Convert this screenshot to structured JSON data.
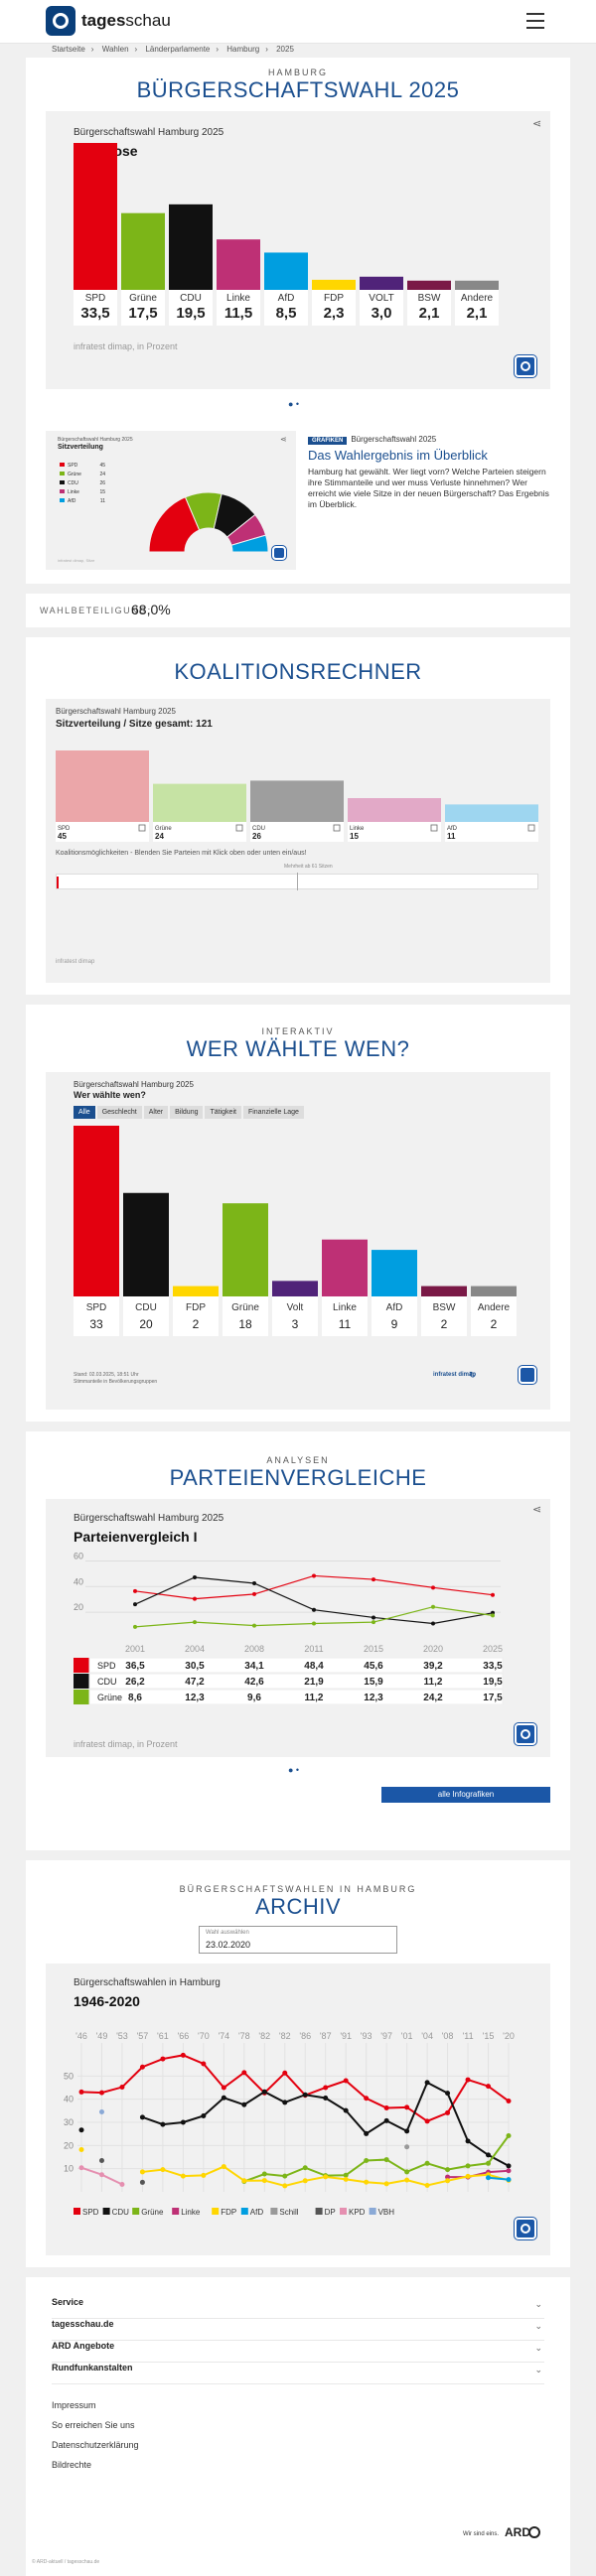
{
  "header": {
    "brand_bold": "tages",
    "brand_rest": "schau"
  },
  "breadcrumb": [
    "Startseite",
    "Wahlen",
    "Länderparlamente",
    "Hamburg",
    "2025"
  ],
  "hero": {
    "kicker": "HAMBURG",
    "title": "BÜRGERSCHAFTSWAHL 2025"
  },
  "prognose": {
    "subtitle": "Bürgerschaftswahl Hamburg 2025",
    "title": "Prognose",
    "source": "infratest dimap, in Prozent",
    "chart_data": {
      "type": "bar",
      "categories": [
        "SPD",
        "Grüne",
        "CDU",
        "Linke",
        "AfD",
        "FDP",
        "VOLT",
        "BSW",
        "Andere"
      ],
      "value_labels": [
        "33,5",
        "17,5",
        "19,5",
        "11,5",
        "8,5",
        "2,3",
        "3,0",
        "2,1",
        "2,1"
      ],
      "values": [
        33.5,
        17.5,
        19.5,
        11.5,
        8.5,
        2.3,
        3.0,
        2.1,
        2.1
      ],
      "colors": [
        "#e3000f",
        "#7cb518",
        "#111111",
        "#be3075",
        "#009ee0",
        "#ffd600",
        "#502379",
        "#7a1946",
        "#888888"
      ]
    }
  },
  "teaser": {
    "thumb_sub": "Bürgerschaftswahl Hamburg 2025",
    "thumb_title": "Sitzverteilung",
    "thumb_legend": [
      {
        "p": "SPD",
        "n": "45"
      },
      {
        "p": "Grüne",
        "n": "24"
      },
      {
        "p": "CDU",
        "n": "26"
      },
      {
        "p": "Linke",
        "n": "15"
      },
      {
        "p": "AfD",
        "n": "11"
      }
    ],
    "thumb_src": "infratest dimap, Sitze",
    "badge": "GRAFIKEN",
    "kicker": "Bürgerschaftswahl 2025",
    "headline": "Das Wahlergebnis im Überblick",
    "text": "Hamburg hat gewählt. Wer liegt vorn? Welche Parteien steigern ihre Stimmanteile und wer muss Verluste hinnehmen? Wer erreicht wie viele Sitze in der neuen Bürgerschaft? Das Ergebnis im Überblick."
  },
  "turnout": {
    "label": "WAHLBETEILIGUNG:",
    "value": "68,0%"
  },
  "coalition": {
    "title": "KOALITIONSRECHNER",
    "subtitle": "Bürgerschaftswahl Hamburg 2025",
    "heading": "Sitzverteilung / Sitze gesamt: 121",
    "hint": "Koalitionsmöglichkeiten - Blenden Sie Parteien mit Klick oben oder unten ein/aus!",
    "majority": "Mehrheit ab 61 Sitzen",
    "source": "infratest dimap",
    "chart_data": {
      "type": "bar",
      "categories": [
        "SPD",
        "Grüne",
        "CDU",
        "Linke",
        "AfD"
      ],
      "values": [
        45,
        24,
        26,
        15,
        11
      ],
      "colors": [
        "#eba6a9",
        "#c6e3a4",
        "#9e9e9e",
        "#e2a9c7",
        "#9ed6f0"
      ]
    }
  },
  "whovoted": {
    "kicker": "INTERAKTIV",
    "title": "WER WÄHLTE WEN?",
    "subtitle": "Bürgerschaftswahl Hamburg 2025",
    "heading": "Wer wählte wen?",
    "tabs": [
      "Alle",
      "Geschlecht",
      "Alter",
      "Bildung",
      "Tätigkeit",
      "Finanzielle Lage"
    ],
    "note1": "Stand: 02.03.2025, 18:51 Uhr",
    "note2": "Stimmanteile in Bevölkerungsgruppen",
    "src": "infratest dimap",
    "chart_data": {
      "type": "bar",
      "categories": [
        "SPD",
        "CDU",
        "FDP",
        "Grüne",
        "Volt",
        "Linke",
        "AfD",
        "BSW",
        "Andere"
      ],
      "values": [
        33,
        20,
        2,
        18,
        3,
        11,
        9,
        2,
        2
      ],
      "colors": [
        "#e3000f",
        "#111111",
        "#ffd600",
        "#7cb518",
        "#502379",
        "#be3075",
        "#009ee0",
        "#7a1946",
        "#888888"
      ]
    }
  },
  "compare": {
    "kicker": "ANALYSEN",
    "title": "PARTEIENVERGLEICHE",
    "subtitle": "Bürgerschaftswahl Hamburg 2025",
    "heading": "Parteienvergleich I",
    "source": "infratest dimap, in Prozent",
    "more_button": "alle Infografiken",
    "chart_data": {
      "type": "line",
      "x": [
        "2001",
        "2004",
        "2008",
        "2011",
        "2015",
        "2020",
        "2025"
      ],
      "yticks": [
        "20",
        "40",
        "60"
      ],
      "ylim": [
        0,
        65
      ],
      "series": [
        {
          "name": "SPD",
          "color": "#e3000f",
          "values": [
            36.5,
            30.5,
            34.1,
            48.4,
            45.6,
            39.2,
            33.5
          ],
          "labels": [
            "36,5",
            "30,5",
            "34,1",
            "48,4",
            "45,6",
            "39,2",
            "33,5"
          ]
        },
        {
          "name": "CDU",
          "color": "#111111",
          "values": [
            26.2,
            47.2,
            42.6,
            21.9,
            15.9,
            11.2,
            19.5
          ],
          "labels": [
            "26,2",
            "47,2",
            "42,6",
            "21,9",
            "15,9",
            "11,2",
            "19,5"
          ]
        },
        {
          "name": "Grüne",
          "color": "#7cb518",
          "values": [
            8.6,
            12.3,
            9.6,
            11.2,
            12.3,
            24.2,
            17.5
          ],
          "labels": [
            "8,6",
            "12,3",
            "9,6",
            "11,2",
            "12,3",
            "24,2",
            "17,5"
          ]
        }
      ]
    }
  },
  "archive": {
    "kicker": "BÜRGERSCHAFTSWAHLEN IN HAMBURG",
    "title": "ARCHIV",
    "select_label": "Wahl auswählen",
    "select_value": "23.02.2020",
    "subtitle": "Bürgerschaftswahlen in Hamburg",
    "heading": "1946-2020",
    "chart_data": {
      "type": "line",
      "x": [
        "'46",
        "'49",
        "'53",
        "'57",
        "'61",
        "'66",
        "'70",
        "'74",
        "'78",
        "'82",
        "'82",
        "'86",
        "'87",
        "'91",
        "'93",
        "'97",
        "'01",
        "'04",
        "'08",
        "'11",
        "'15",
        "'20"
      ],
      "yticks": [
        "10",
        "20",
        "30",
        "40",
        "50"
      ],
      "ylim": [
        0,
        60
      ],
      "series": [
        {
          "name": "SPD",
          "color": "#e3000f",
          "values": [
            43.1,
            42.8,
            45.2,
            53.9,
            57.4,
            59.0,
            55.3,
            45.0,
            51.5,
            42.7,
            51.3,
            41.7,
            45.0,
            48.0,
            40.4,
            36.2,
            36.5,
            30.5,
            34.1,
            48.4,
            45.6,
            39.2
          ]
        },
        {
          "name": "CDU",
          "color": "#111111",
          "values": [
            26.7,
            null,
            null,
            32.2,
            29.1,
            30.0,
            32.8,
            40.6,
            37.6,
            43.2,
            38.6,
            41.9,
            40.5,
            35.1,
            25.1,
            30.7,
            26.2,
            47.2,
            42.6,
            21.9,
            15.9,
            11.2
          ]
        },
        {
          "name": "Grüne",
          "color": "#7cb518",
          "values": [
            null,
            null,
            null,
            null,
            null,
            null,
            null,
            null,
            4.5,
            7.7,
            6.8,
            10.4,
            7.0,
            7.2,
            13.5,
            13.9,
            8.6,
            12.3,
            9.6,
            11.2,
            12.3,
            24.2
          ]
        },
        {
          "name": "Linke",
          "color": "#be3075",
          "values": [
            null,
            null,
            null,
            null,
            null,
            null,
            null,
            null,
            null,
            null,
            null,
            null,
            null,
            null,
            null,
            null,
            null,
            null,
            6.4,
            6.4,
            8.5,
            9.1
          ]
        },
        {
          "name": "FDP",
          "color": "#ffd600",
          "values": [
            18.2,
            null,
            null,
            8.6,
            9.6,
            6.8,
            7.1,
            10.9,
            4.8,
            4.9,
            2.6,
            4.8,
            6.5,
            5.4,
            4.2,
            3.5,
            5.1,
            2.8,
            4.8,
            6.7,
            7.4,
            5.0
          ]
        },
        {
          "name": "AfD",
          "color": "#009ee0",
          "values": [
            null,
            null,
            null,
            null,
            null,
            null,
            null,
            null,
            null,
            null,
            null,
            null,
            null,
            null,
            null,
            null,
            null,
            null,
            null,
            null,
            6.1,
            5.3
          ]
        },
        {
          "name": "Schill",
          "color": "#999999",
          "values": [
            null,
            null,
            null,
            null,
            null,
            null,
            null,
            null,
            null,
            null,
            null,
            null,
            null,
            null,
            null,
            null,
            19.4,
            null,
            null,
            null,
            null,
            null
          ]
        },
        {
          "name": "DP",
          "color": "#555555",
          "values": [
            null,
            13.5,
            null,
            4.1,
            null,
            null,
            null,
            null,
            null,
            null,
            null,
            null,
            null,
            null,
            null,
            null,
            null,
            null,
            null,
            null,
            null,
            null
          ]
        },
        {
          "name": "KPD",
          "color": "#e58fb0",
          "values": [
            10.4,
            7.4,
            3.2,
            null,
            null,
            null,
            null,
            null,
            null,
            null,
            null,
            null,
            null,
            null,
            null,
            null,
            null,
            null,
            null,
            null,
            null,
            null
          ]
        },
        {
          "name": "VBH",
          "color": "#8aa9d6",
          "values": [
            null,
            34.5,
            null,
            null,
            null,
            null,
            null,
            null,
            null,
            null,
            null,
            null,
            null,
            null,
            null,
            null,
            null,
            null,
            null,
            null,
            null,
            null
          ]
        }
      ]
    }
  },
  "footer": {
    "accordions": [
      "Service",
      "tagesschau.de",
      "ARD Angebote",
      "Rundfunkanstalten"
    ],
    "links": [
      "Impressum",
      "So erreichen Sie uns",
      "Datenschutzerklärung",
      "Bildrechte"
    ],
    "ard_text": "Wir sind eins.",
    "ard_logo": "ARD",
    "copyright": "© ARD-aktuell / tagesschau.de"
  }
}
